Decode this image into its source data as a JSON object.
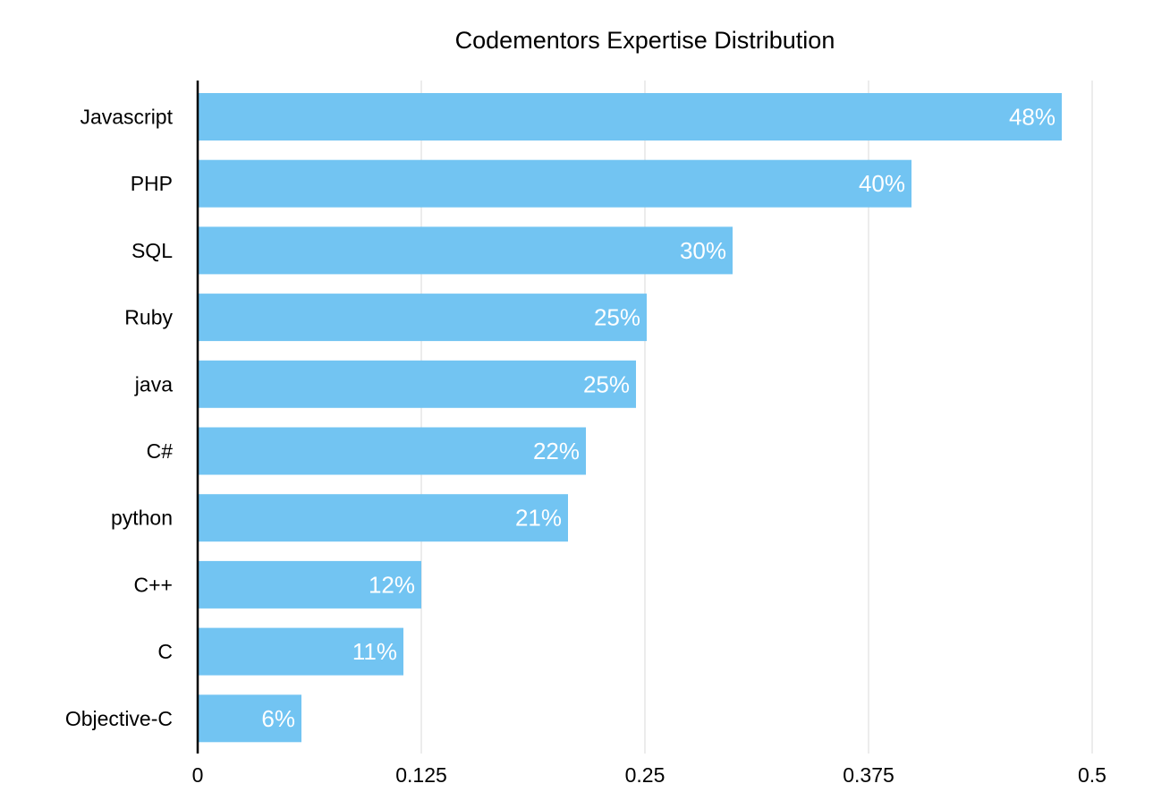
{
  "chart_data": {
    "type": "bar",
    "orientation": "horizontal",
    "title": "Codementors Expertise Distribution",
    "xlabel": "",
    "ylabel": "",
    "categories": [
      "Javascript",
      "PHP",
      "SQL",
      "Ruby",
      "java",
      "C#",
      "python",
      "C++",
      "C",
      "Objective-C"
    ],
    "values": [
      0.483,
      0.399,
      0.299,
      0.251,
      0.245,
      0.217,
      0.207,
      0.125,
      0.115,
      0.058
    ],
    "data_labels": [
      "48%",
      "40%",
      "30%",
      "25%",
      "25%",
      "22%",
      "21%",
      "12%",
      "11%",
      "6%"
    ],
    "xlim": [
      0,
      0.5
    ],
    "xticks": [
      0,
      0.125,
      0.25,
      0.375,
      0.5
    ],
    "xtick_labels": [
      "0",
      "0.125",
      "0.25",
      "0.375",
      "0.5"
    ],
    "grid": "vertical",
    "legend": "none",
    "bar_color": "#72c4f2",
    "data_label_color": "#ffffff"
  }
}
